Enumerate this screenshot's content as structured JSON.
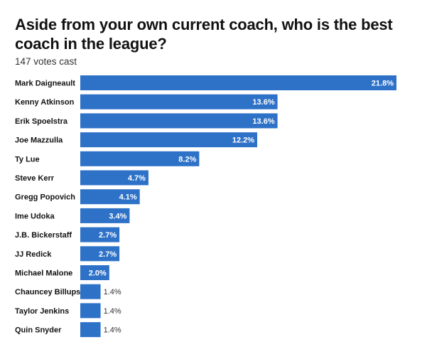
{
  "header": {
    "title": "Aside from your own current coach, who is the best coach in the league?",
    "votes": "147 votes cast"
  },
  "chart_data": {
    "type": "bar",
    "orientation": "horizontal",
    "title": "Aside from your own current coach, who is the best coach in the league?",
    "subtitle": "147 votes cast",
    "categories": [
      "Mark Daigneault",
      "Kenny Atkinson",
      "Erik Spoelstra",
      "Joe Mazzulla",
      "Ty Lue",
      "Steve Kerr",
      "Gregg Popovich",
      "Ime Udoka",
      "J.B. Bickerstaff",
      "JJ Redick",
      "Michael Malone",
      "Chauncey Billups",
      "Taylor Jenkins",
      "Quin Snyder"
    ],
    "values": [
      21.8,
      13.6,
      13.6,
      12.2,
      8.2,
      4.7,
      4.1,
      3.4,
      2.7,
      2.7,
      2.0,
      1.4,
      1.4,
      1.4
    ],
    "value_labels": [
      "21.8%",
      "13.6%",
      "13.6%",
      "12.2%",
      "8.2%",
      "4.7%",
      "4.1%",
      "3.4%",
      "2.7%",
      "2.7%",
      "2.0%",
      "1.4%",
      "1.4%",
      "1.4%"
    ],
    "unit": "%",
    "xlim": [
      0,
      21.8
    ],
    "bar_color": "#2e72c8",
    "grid": false,
    "legend": "none"
  }
}
